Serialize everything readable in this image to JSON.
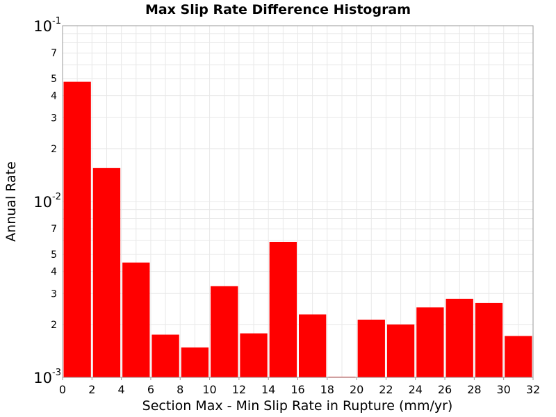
{
  "chart_data": {
    "type": "bar",
    "title": "Max Slip Rate Difference Histogram",
    "xlabel": "Section Max - Min Slip Rate in Rupture (mm/yr)",
    "ylabel": "Annual Rate",
    "xlim": [
      0,
      32
    ],
    "ylim": [
      0.001,
      0.1
    ],
    "y_scale": "log",
    "bar_width": 2,
    "bar_color": "#ff0000",
    "grid": true,
    "x_ticks": [
      "0",
      "2",
      "4",
      "6",
      "8",
      "10",
      "12",
      "14",
      "16",
      "18",
      "20",
      "22",
      "24",
      "26",
      "28",
      "30",
      "32"
    ],
    "y_decade_ticks": [
      {
        "base": "10",
        "exp": "-1",
        "value": 0.1
      },
      {
        "base": "10",
        "exp": "-2",
        "value": 0.01
      },
      {
        "base": "10",
        "exp": "-3",
        "value": 0.001
      }
    ],
    "y_minor_labels": [
      "2",
      "3",
      "4",
      "5",
      "7"
    ],
    "bins": [
      {
        "x": 1,
        "value": 0.048
      },
      {
        "x": 3,
        "value": 0.0155
      },
      {
        "x": 5,
        "value": 0.0045
      },
      {
        "x": 7,
        "value": 0.00175
      },
      {
        "x": 9,
        "value": 0.00148
      },
      {
        "x": 11,
        "value": 0.0033
      },
      {
        "x": 13,
        "value": 0.00178
      },
      {
        "x": 15,
        "value": 0.0059
      },
      {
        "x": 17,
        "value": 0.00228
      },
      {
        "x": 19,
        "value": 0.001
      },
      {
        "x": 21,
        "value": 0.00213
      },
      {
        "x": 23,
        "value": 0.002
      },
      {
        "x": 25,
        "value": 0.0025
      },
      {
        "x": 27,
        "value": 0.0028
      },
      {
        "x": 29,
        "value": 0.00265
      },
      {
        "x": 31,
        "value": 0.00172
      }
    ]
  }
}
